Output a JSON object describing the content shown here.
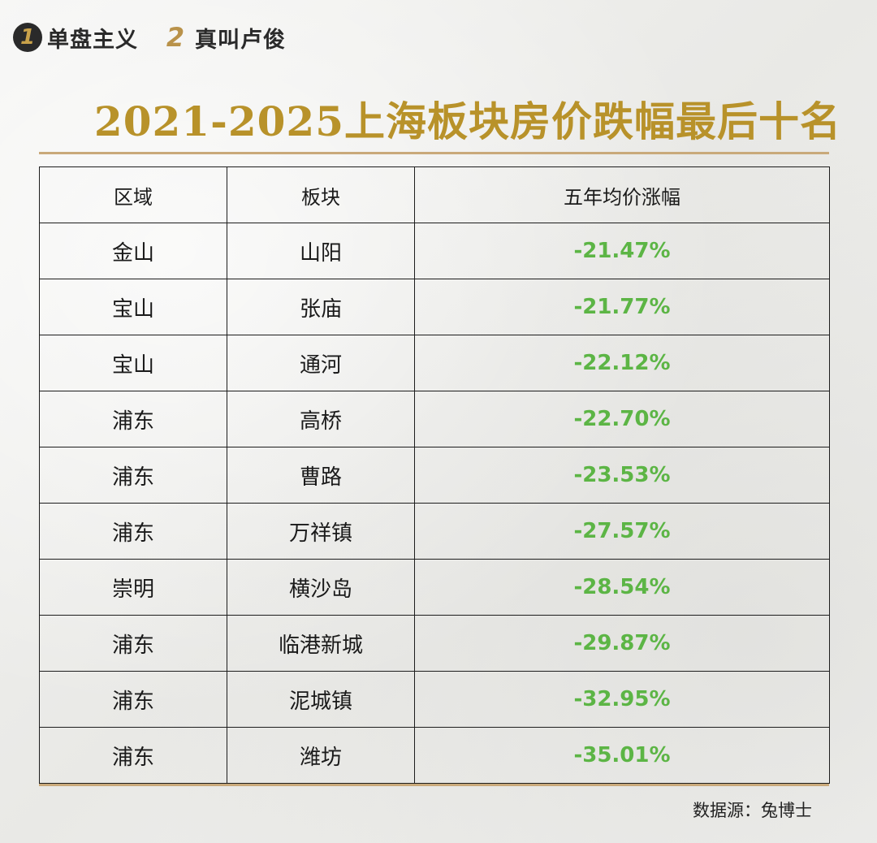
{
  "brand": {
    "items": [
      {
        "icon_glyph": "1",
        "icon_name": "number-one-icon",
        "label": "单盘主义"
      },
      {
        "icon_glyph": "2",
        "icon_name": "number-two-icon",
        "label": "真叫卢俊"
      }
    ]
  },
  "title": "2021-2025上海板块房价跌幅最后十名",
  "table": {
    "headers": [
      "区域",
      "板块",
      "五年均价涨幅"
    ],
    "rows": [
      [
        "金山",
        "山阳",
        "-21.47%"
      ],
      [
        "宝山",
        "张庙",
        "-21.77%"
      ],
      [
        "宝山",
        "通河",
        "-22.12%"
      ],
      [
        "浦东",
        "高桥",
        "-22.70%"
      ],
      [
        "浦东",
        "曹路",
        "-23.53%"
      ],
      [
        "浦东",
        "万祥镇",
        "-27.57%"
      ],
      [
        "崇明",
        "横沙岛",
        "-28.54%"
      ],
      [
        "浦东",
        "临港新城",
        "-29.87%"
      ],
      [
        "浦东",
        "泥城镇",
        "-32.95%"
      ],
      [
        "浦东",
        "潍坊",
        "-35.01%"
      ]
    ]
  },
  "source": "数据源：兔博士",
  "colors": {
    "title": "#b8922a",
    "negative_value": "#5cb545",
    "rule": "#c9a97a"
  }
}
